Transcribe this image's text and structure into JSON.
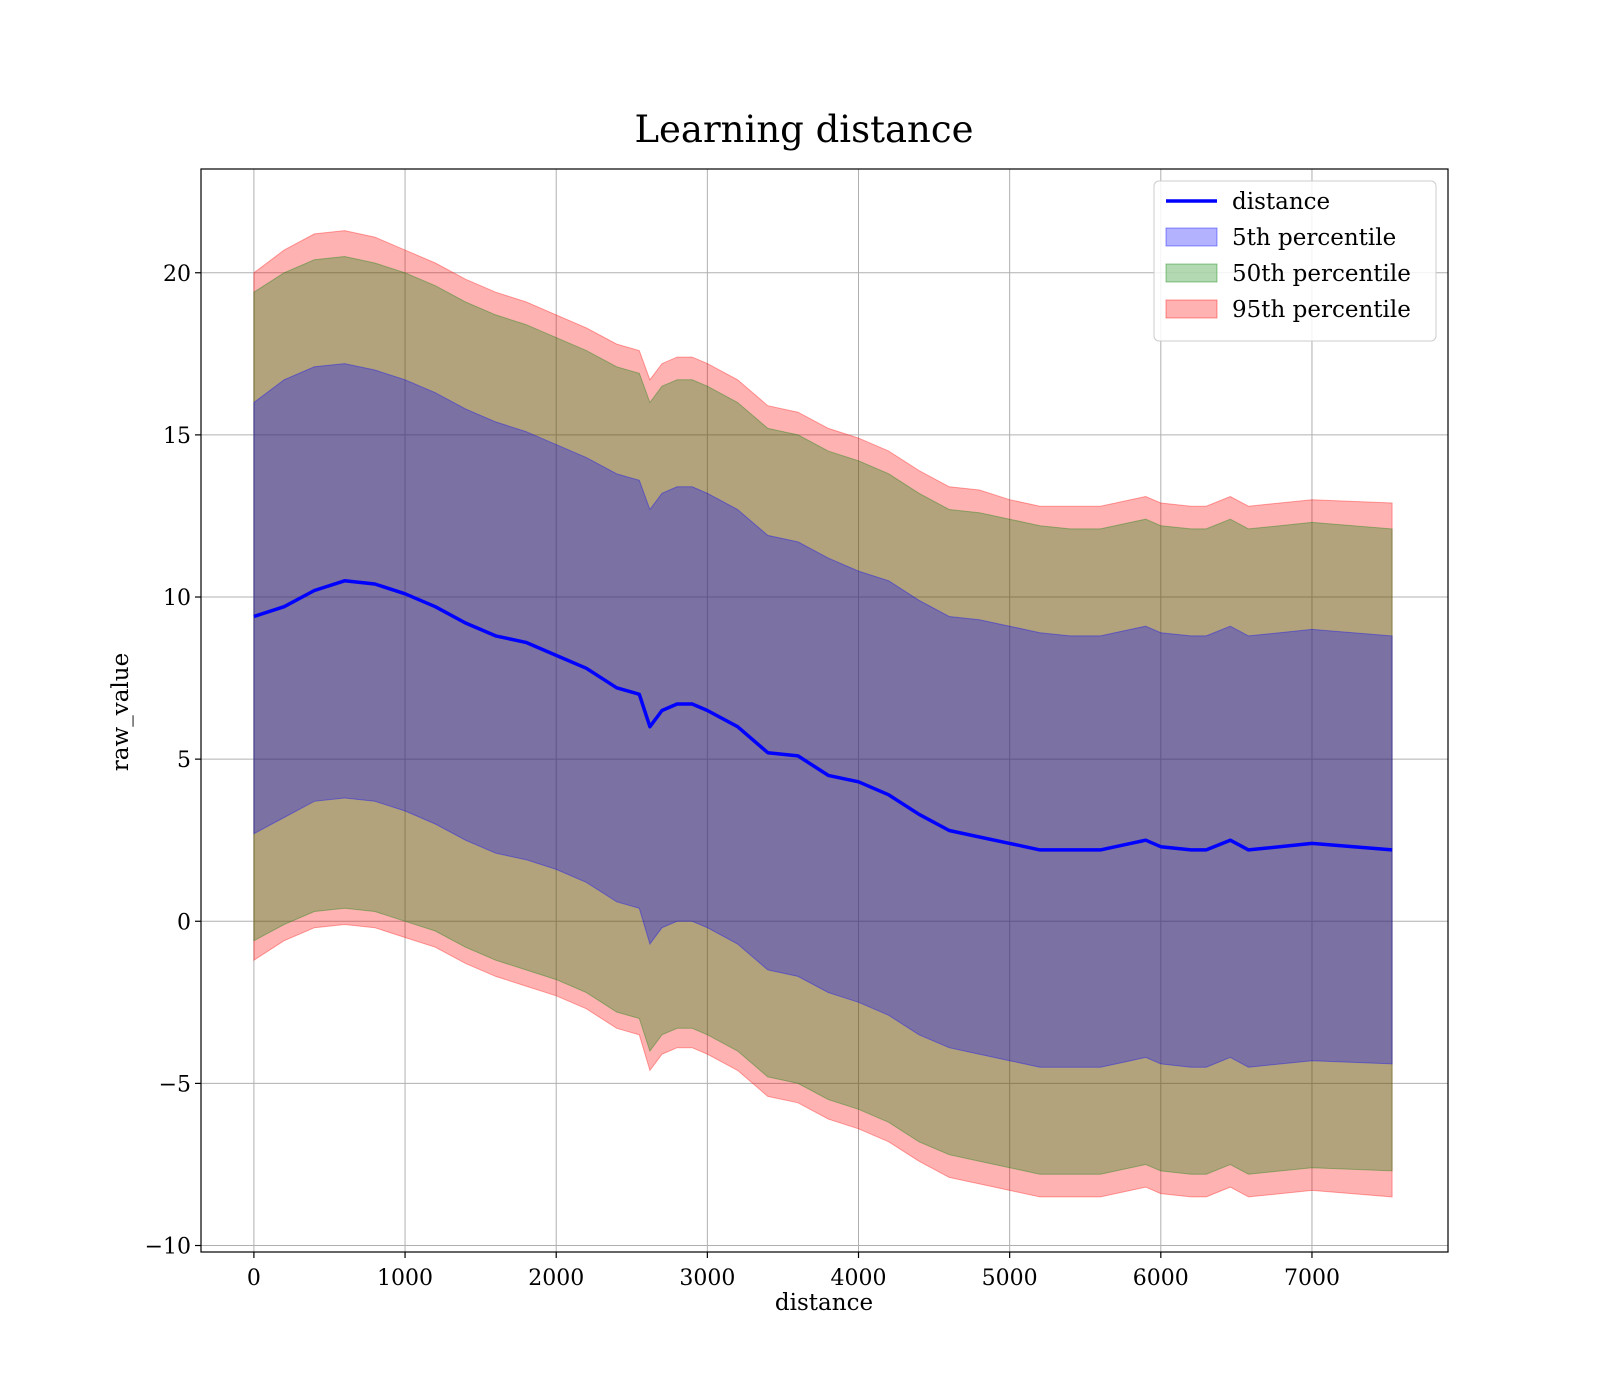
{
  "chart_data": {
    "type": "area",
    "title": "Learning distance",
    "xlabel": "distance",
    "ylabel": "raw_value",
    "xlim": [
      -350,
      7900
    ],
    "ylim": [
      -10.2,
      23.2
    ],
    "xticks": [
      0,
      1000,
      2000,
      3000,
      4000,
      5000,
      6000,
      7000
    ],
    "yticks": [
      -10,
      -5,
      0,
      5,
      10,
      15,
      20
    ],
    "ytick_labels": [
      "−10",
      "−5",
      "0",
      "5",
      "10",
      "15",
      "20"
    ],
    "grid": true,
    "legend_position": "top-right",
    "x": [
      0,
      200,
      400,
      600,
      800,
      1000,
      1200,
      1400,
      1600,
      1800,
      2000,
      2200,
      2400,
      2550,
      2620,
      2700,
      2800,
      2900,
      3000,
      3200,
      3400,
      3600,
      3800,
      4000,
      4200,
      4400,
      4600,
      4800,
      5000,
      5200,
      5400,
      5600,
      5800,
      5900,
      6000,
      6200,
      6300,
      6460,
      6580,
      7000,
      7530
    ],
    "series": [
      {
        "name": "distance",
        "kind": "line",
        "color": "#0000ff",
        "values": [
          9.4,
          9.7,
          10.2,
          10.5,
          10.4,
          10.1,
          9.7,
          9.2,
          8.8,
          8.6,
          8.2,
          7.8,
          7.2,
          7.0,
          6.0,
          6.5,
          6.7,
          6.7,
          6.5,
          6.0,
          5.2,
          5.1,
          4.5,
          4.3,
          3.9,
          3.3,
          2.8,
          2.6,
          2.4,
          2.2,
          2.2,
          2.2,
          2.4,
          2.5,
          2.3,
          2.2,
          2.2,
          2.5,
          2.2,
          2.4,
          2.2
        ]
      },
      {
        "name": "5th percentile",
        "kind": "band",
        "color": "#0000ff",
        "opacity": 0.3,
        "upper": [
          16.0,
          16.7,
          17.1,
          17.2,
          17.0,
          16.7,
          16.3,
          15.8,
          15.4,
          15.1,
          14.7,
          14.3,
          13.8,
          13.6,
          12.7,
          13.2,
          13.4,
          13.4,
          13.2,
          12.7,
          11.9,
          11.7,
          11.2,
          10.8,
          10.5,
          9.9,
          9.4,
          9.3,
          9.1,
          8.9,
          8.8,
          8.8,
          9.0,
          9.1,
          8.9,
          8.8,
          8.8,
          9.1,
          8.8,
          9.0,
          8.8
        ],
        "lower": [
          2.7,
          3.2,
          3.7,
          3.8,
          3.7,
          3.4,
          3.0,
          2.5,
          2.1,
          1.9,
          1.6,
          1.2,
          0.6,
          0.4,
          -0.7,
          -0.2,
          0.0,
          0.0,
          -0.2,
          -0.7,
          -1.5,
          -1.7,
          -2.2,
          -2.5,
          -2.9,
          -3.5,
          -3.9,
          -4.1,
          -4.3,
          -4.5,
          -4.5,
          -4.5,
          -4.3,
          -4.2,
          -4.4,
          -4.5,
          -4.5,
          -4.2,
          -4.5,
          -4.3,
          -4.4
        ]
      },
      {
        "name": "50th percentile",
        "kind": "band",
        "color": "#008000",
        "opacity": 0.3,
        "upper": [
          19.4,
          20.0,
          20.4,
          20.5,
          20.3,
          20.0,
          19.6,
          19.1,
          18.7,
          18.4,
          18.0,
          17.6,
          17.1,
          16.9,
          16.0,
          16.5,
          16.7,
          16.7,
          16.5,
          16.0,
          15.2,
          15.0,
          14.5,
          14.2,
          13.8,
          13.2,
          12.7,
          12.6,
          12.4,
          12.2,
          12.1,
          12.1,
          12.3,
          12.4,
          12.2,
          12.1,
          12.1,
          12.4,
          12.1,
          12.3,
          12.1
        ],
        "lower": [
          -0.6,
          -0.1,
          0.3,
          0.4,
          0.3,
          0.0,
          -0.3,
          -0.8,
          -1.2,
          -1.5,
          -1.8,
          -2.2,
          -2.8,
          -3.0,
          -4.0,
          -3.5,
          -3.3,
          -3.3,
          -3.5,
          -4.0,
          -4.8,
          -5.0,
          -5.5,
          -5.8,
          -6.2,
          -6.8,
          -7.2,
          -7.4,
          -7.6,
          -7.8,
          -7.8,
          -7.8,
          -7.6,
          -7.5,
          -7.7,
          -7.8,
          -7.8,
          -7.5,
          -7.8,
          -7.6,
          -7.7
        ]
      },
      {
        "name": "95th percentile",
        "kind": "band",
        "color": "#ff0000",
        "opacity": 0.3,
        "upper": [
          20.0,
          20.7,
          21.2,
          21.3,
          21.1,
          20.7,
          20.3,
          19.8,
          19.4,
          19.1,
          18.7,
          18.3,
          17.8,
          17.6,
          16.7,
          17.2,
          17.4,
          17.4,
          17.2,
          16.7,
          15.9,
          15.7,
          15.2,
          14.9,
          14.5,
          13.9,
          13.4,
          13.3,
          13.0,
          12.8,
          12.8,
          12.8,
          13.0,
          13.1,
          12.9,
          12.8,
          12.8,
          13.1,
          12.8,
          13.0,
          12.9
        ],
        "lower": [
          -1.2,
          -0.6,
          -0.2,
          -0.1,
          -0.2,
          -0.5,
          -0.8,
          -1.3,
          -1.7,
          -2.0,
          -2.3,
          -2.7,
          -3.3,
          -3.5,
          -4.6,
          -4.1,
          -3.9,
          -3.9,
          -4.1,
          -4.6,
          -5.4,
          -5.6,
          -6.1,
          -6.4,
          -6.8,
          -7.4,
          -7.9,
          -8.1,
          -8.3,
          -8.5,
          -8.5,
          -8.5,
          -8.3,
          -8.2,
          -8.4,
          -8.5,
          -8.5,
          -8.2,
          -8.5,
          -8.3,
          -8.5
        ]
      }
    ]
  }
}
